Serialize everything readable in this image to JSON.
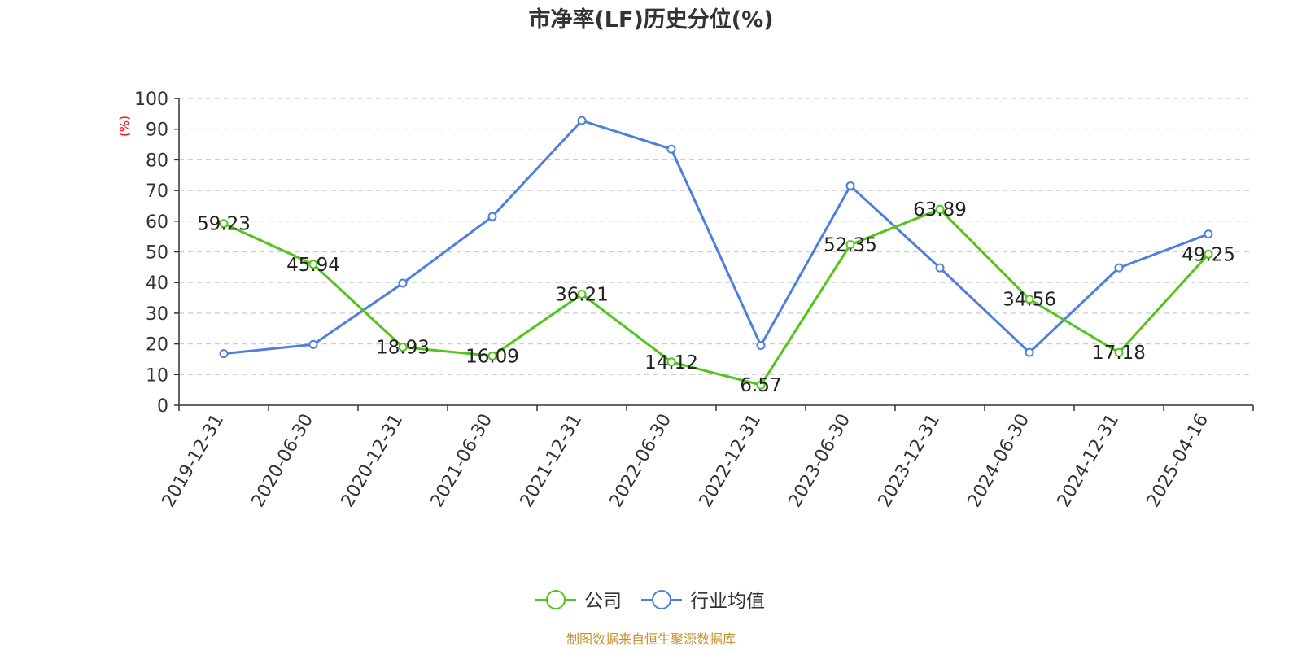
{
  "chart_data": {
    "type": "line",
    "title": "市净率(LF)历史分位(%)",
    "ylabel": "(%)",
    "xlabel": "",
    "ylim": [
      0,
      100
    ],
    "yticks": [
      0,
      10,
      20,
      30,
      40,
      50,
      60,
      70,
      80,
      90,
      100
    ],
    "grid": true,
    "legend_position": "bottom-center",
    "categories": [
      "2019-12-31",
      "2020-06-30",
      "2020-12-31",
      "2021-06-30",
      "2021-12-31",
      "2022-06-30",
      "2022-12-31",
      "2023-06-30",
      "2023-12-31",
      "2024-06-30",
      "2024-12-31",
      "2025-04-16"
    ],
    "series": [
      {
        "name": "公司",
        "color": "#52c41a",
        "values": [
          59.23,
          45.94,
          18.93,
          16.09,
          36.21,
          14.12,
          6.57,
          52.35,
          63.89,
          34.56,
          17.18,
          49.25
        ],
        "labels": [
          "59.23",
          "45.94",
          "18.93",
          "16.09",
          "36.21",
          "14.12",
          "6.57",
          "52.35",
          "63.89",
          "34.56",
          "17.18",
          "49.25"
        ]
      },
      {
        "name": "行业均值",
        "color": "#4e7fde",
        "values": [
          16.8,
          19.8,
          39.8,
          61.5,
          92.8,
          83.5,
          19.5,
          71.5,
          44.8,
          17.2,
          44.8,
          55.8
        ]
      }
    ]
  },
  "source_text": "制图数据来自恒生聚源数据库",
  "colors": {
    "title": "#333333",
    "axis": "#333333",
    "grid": "#cccccc",
    "ylabel": "#ff0000",
    "source": "#c8902a"
  }
}
